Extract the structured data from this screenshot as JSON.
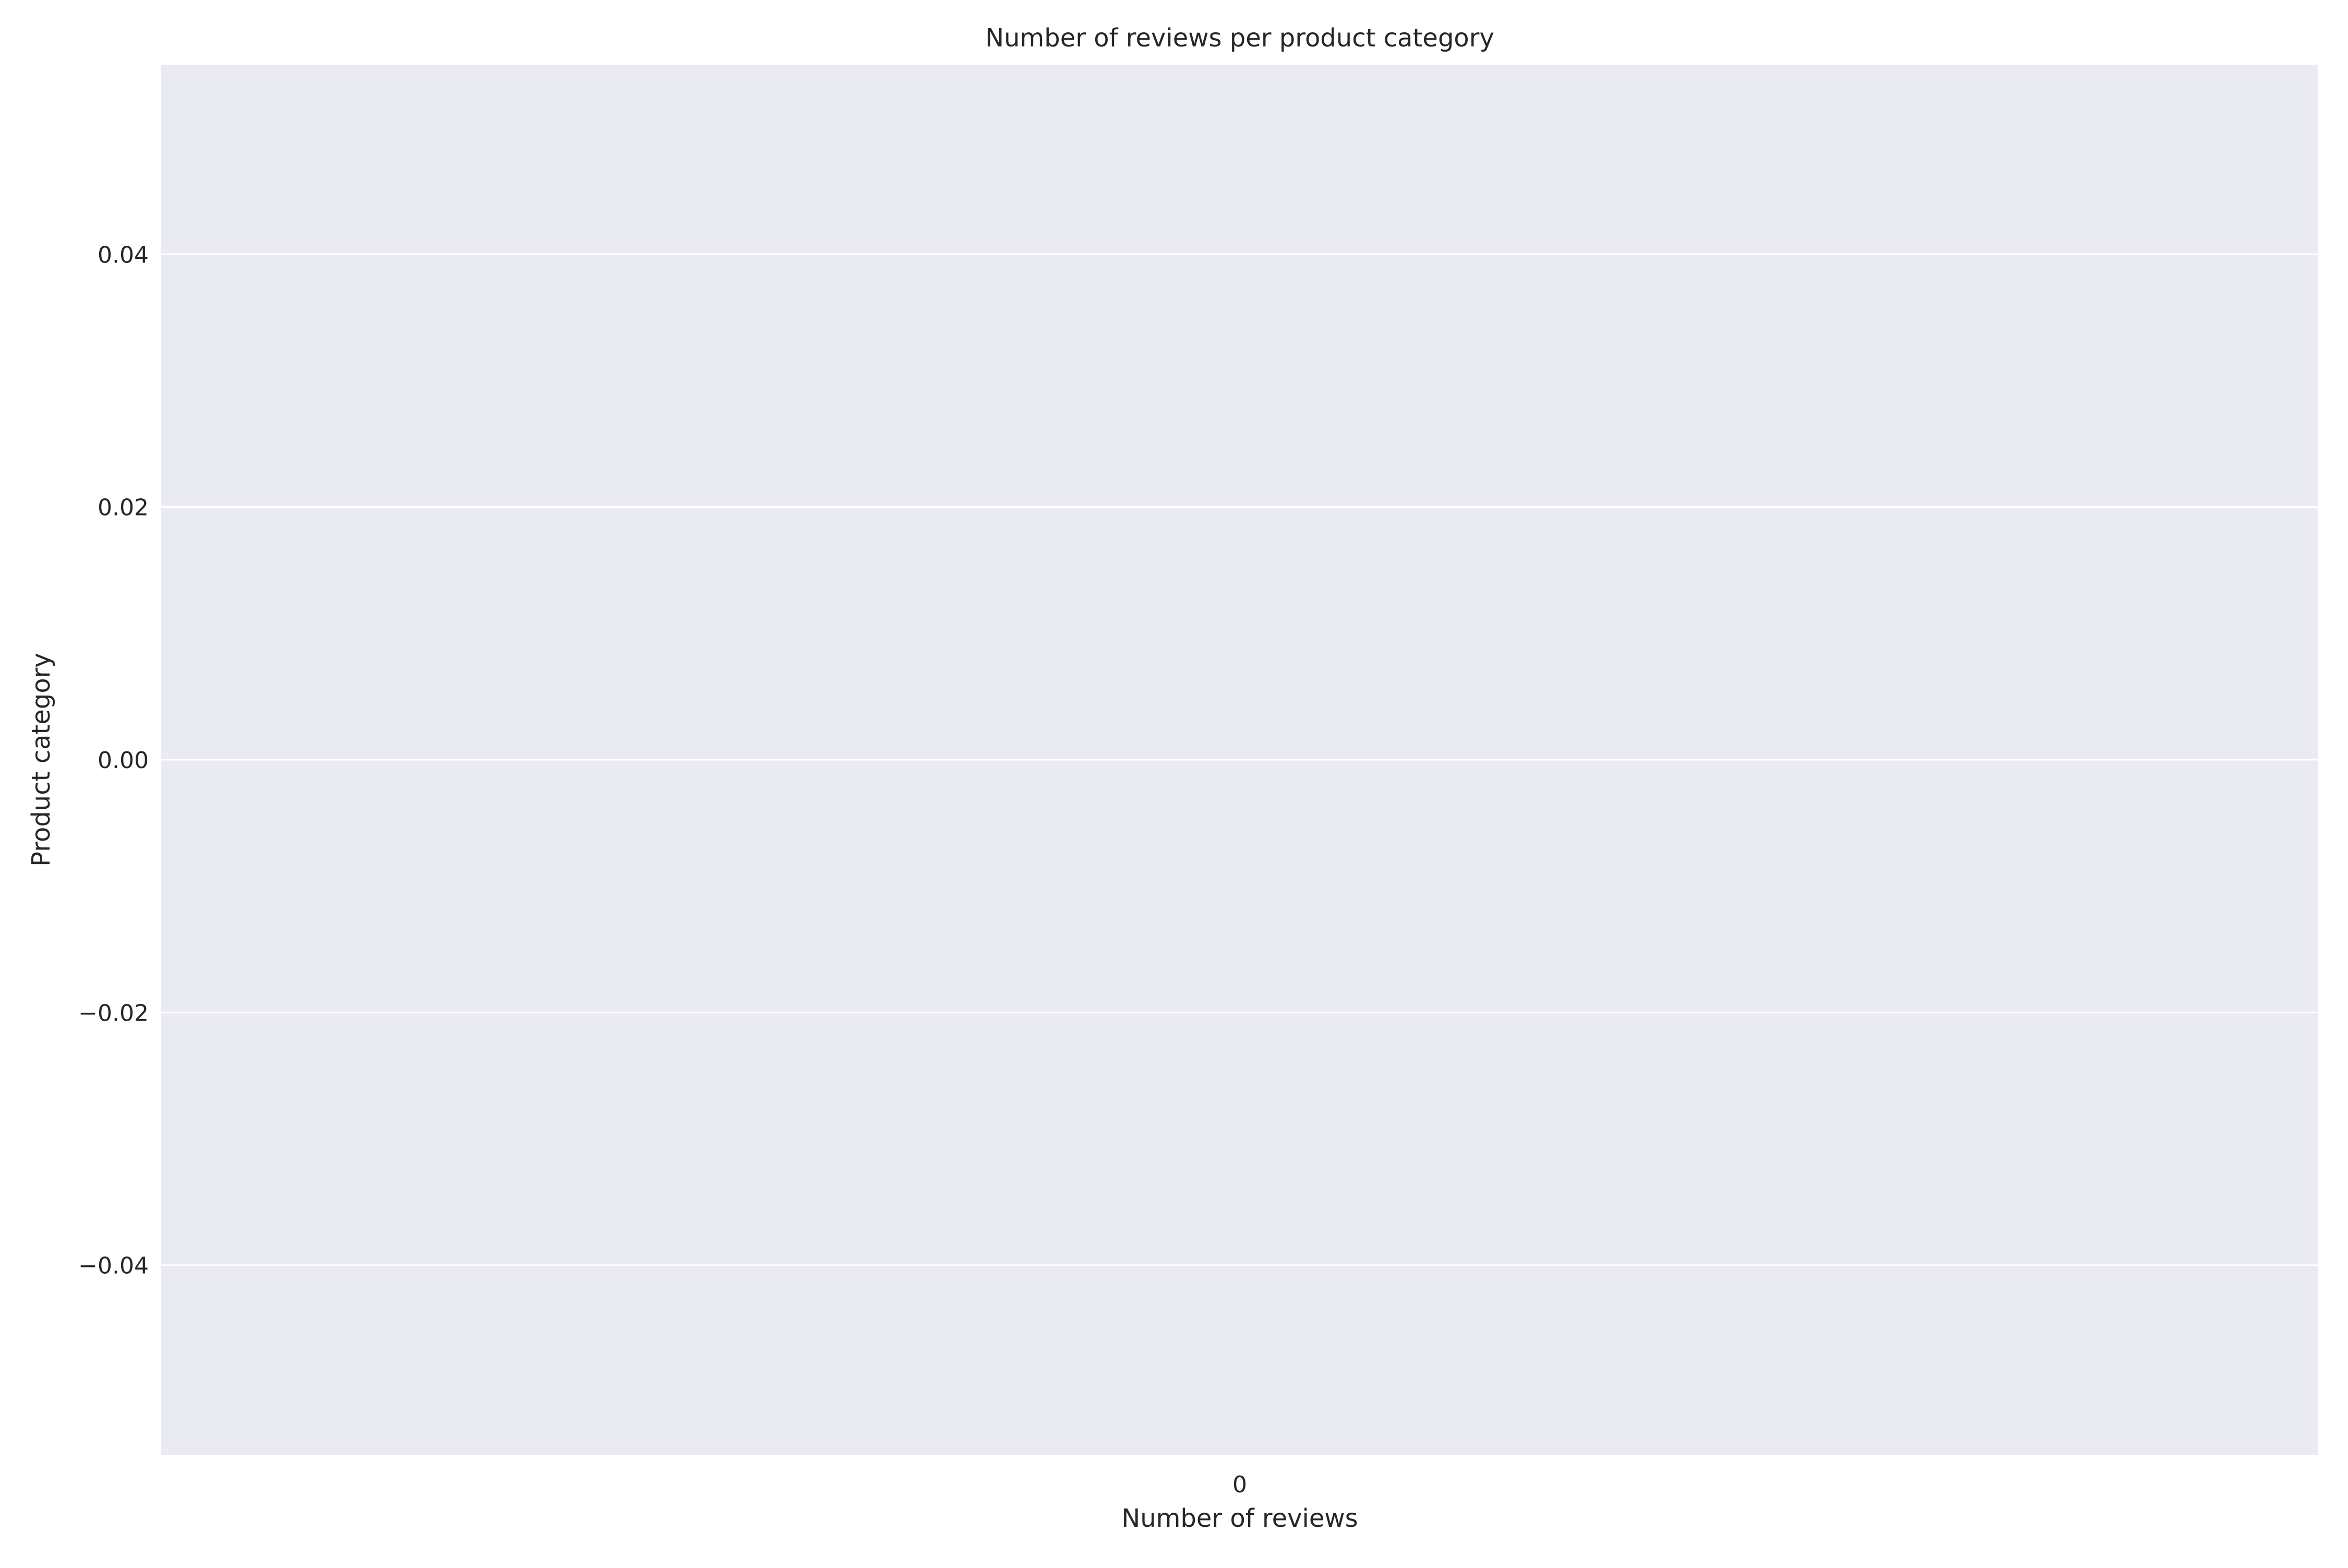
{
  "chart_data": {
    "type": "bar",
    "orientation": "horizontal",
    "title": "Number of reviews per product category",
    "xlabel": "Number of reviews",
    "ylabel": "Product category",
    "categories": [],
    "values": [],
    "x_ticks": [
      "0"
    ],
    "y_ticks": [
      0.04,
      0.02,
      0.0,
      -0.02,
      -0.04
    ],
    "y_tick_labels": [
      "0.04",
      "0.02",
      "0.00",
      "−0.02",
      "−0.04"
    ],
    "ylim": [
      -0.055,
      0.055
    ],
    "grid": true,
    "legend": "none",
    "colors": {
      "plot_background": "#eaeaf2",
      "grid": "#ffffff",
      "text": "#262626"
    }
  }
}
